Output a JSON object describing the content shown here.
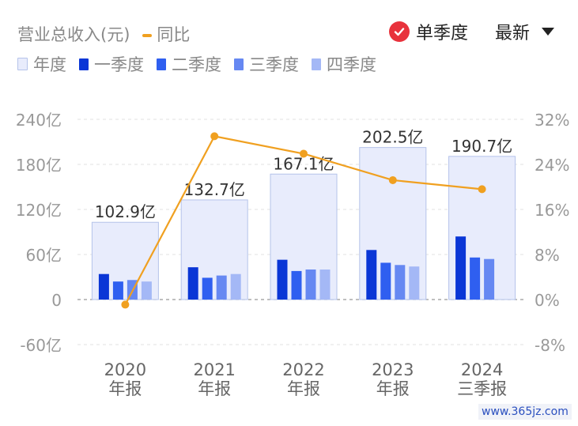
{
  "header": {
    "series_title": "营业总收入(元)",
    "yoy_label": "同比",
    "season_toggle_label": "单季度",
    "latest_label": "最新"
  },
  "legend": [
    {
      "label": "年度",
      "color": "#e8ecfc"
    },
    {
      "label": "一季度",
      "color": "#0a36d6"
    },
    {
      "label": "二季度",
      "color": "#2f5ff0"
    },
    {
      "label": "三季度",
      "color": "#6688f2"
    },
    {
      "label": "四季度",
      "color": "#a4b8f6"
    }
  ],
  "chart_data": {
    "type": "bar",
    "categories": [
      "2020\n年报",
      "2021\n年报",
      "2022\n年报",
      "2023\n年报",
      "2024\n三季报"
    ],
    "annual_labels": [
      "102.9亿",
      "132.7亿",
      "167.1亿",
      "202.5亿",
      "190.7亿"
    ],
    "annual": [
      102.9,
      132.7,
      167.1,
      202.5,
      190.7
    ],
    "series": [
      {
        "name": "一季度",
        "values": [
          34,
          43,
          53,
          66,
          84
        ]
      },
      {
        "name": "二季度",
        "values": [
          24,
          29,
          38,
          49,
          56
        ]
      },
      {
        "name": "三季度",
        "values": [
          26,
          32,
          40,
          46,
          54
        ]
      },
      {
        "name": "四季度",
        "values": [
          24,
          34,
          40,
          44,
          null
        ]
      }
    ],
    "yoy": {
      "name": "同比",
      "values": [
        -0.9,
        29.0,
        25.9,
        21.2,
        19.6
      ],
      "color": "#f0a020"
    },
    "ylim_left": [
      -60,
      240
    ],
    "yticks_left": [
      "-60亿",
      "0",
      "60亿",
      "120亿",
      "180亿",
      "240亿"
    ],
    "yticks_left_values": [
      -60,
      0,
      60,
      120,
      180,
      240
    ],
    "ylim_right": [
      -8,
      32
    ],
    "yticks_right": [
      "-8%",
      "0%",
      "8%",
      "16%",
      "24%",
      "32%"
    ],
    "grid": true
  },
  "watermark": "www.365jz.com"
}
